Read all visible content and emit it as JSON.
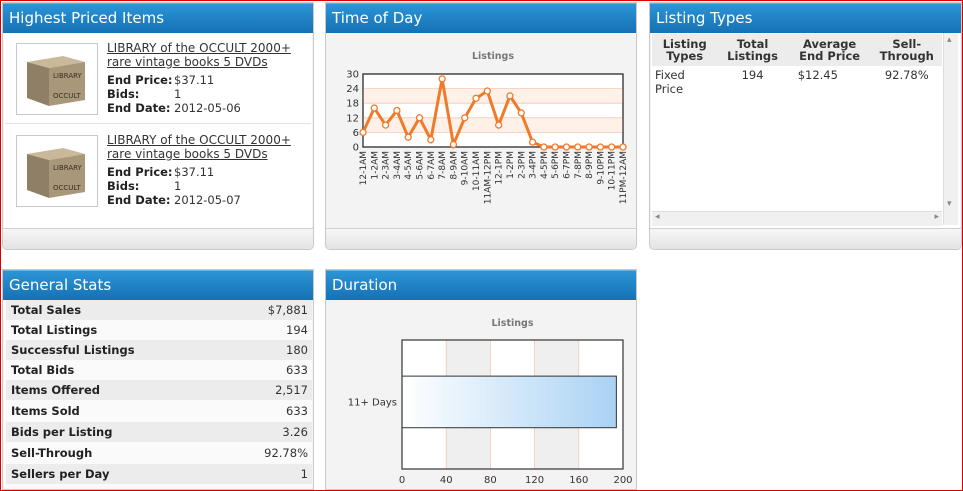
{
  "highest_priced": {
    "title": "Highest Priced Items",
    "items": [
      {
        "title": "LIBRARY of the OCCULT 2000+ rare vintage books 5 DVDs",
        "end_price_label": "End Price:",
        "end_price": "$37.11",
        "bids_label": "Bids:",
        "bids": "1",
        "end_date_label": "End Date:",
        "end_date": "2012-05-06",
        "thumb_text_top": "LIBRARY",
        "thumb_text_bottom": "OCCULT"
      },
      {
        "title": "LIBRARY of the OCCULT 2000+ rare vintage books 5 DVDs",
        "end_price_label": "End Price:",
        "end_price": "$37.11",
        "bids_label": "Bids:",
        "bids": "1",
        "end_date_label": "End Date:",
        "end_date": "2012-05-07",
        "thumb_text_top": "LIBRARY",
        "thumb_text_bottom": "OCCULT"
      }
    ]
  },
  "time_of_day": {
    "title": "Time of Day",
    "chart_data": {
      "type": "line",
      "title": "Listings",
      "categories": [
        "12-1AM",
        "1-2AM",
        "2-3AM",
        "3-4AM",
        "4-5AM",
        "5-6AM",
        "6-7AM",
        "7-8AM",
        "8-9AM",
        "9-10AM",
        "10-11AM",
        "11AM-12PM",
        "12-1PM",
        "1-2PM",
        "2-3PM",
        "3-4PM",
        "4-5PM",
        "5-6PM",
        "6-7PM",
        "7-8PM",
        "8-9PM",
        "9-10PM",
        "10-11PM",
        "11PM-12AM"
      ],
      "values": [
        6,
        16,
        9,
        15,
        4,
        12,
        3,
        28,
        1,
        12,
        20,
        23,
        9,
        21,
        14,
        2,
        0,
        0,
        0,
        0,
        0,
        0,
        0,
        0
      ],
      "yticks": [
        "0",
        "6",
        "12",
        "18",
        "24",
        "30"
      ],
      "ylim": [
        0,
        30
      ],
      "color": "#f07a2a"
    }
  },
  "listing_types": {
    "title": "Listing Types",
    "headers": [
      "Listing Types",
      "Total Listings",
      "Average End Price",
      "Sell-Through"
    ],
    "rows": [
      [
        "Fixed Price",
        "194",
        "$12.45",
        "92.78%"
      ]
    ]
  },
  "general_stats": {
    "title": "General Stats",
    "rows": [
      {
        "label": "Total Sales",
        "value": "$7,881"
      },
      {
        "label": "Total Listings",
        "value": "194"
      },
      {
        "label": "Successful Listings",
        "value": "180"
      },
      {
        "label": "Total Bids",
        "value": "633"
      },
      {
        "label": "Items Offered",
        "value": "2,517"
      },
      {
        "label": "Items Sold",
        "value": "633"
      },
      {
        "label": "Bids per Listing",
        "value": "3.26"
      },
      {
        "label": "Sell-Through",
        "value": "92.78%"
      },
      {
        "label": "Sellers per Day",
        "value": "1"
      }
    ]
  },
  "duration": {
    "title": "Duration",
    "chart_data": {
      "type": "bar",
      "orientation": "horizontal",
      "title": "Listings",
      "categories": [
        "11+ Days"
      ],
      "values": [
        194
      ],
      "xticks": [
        "0",
        "40",
        "80",
        "120",
        "160",
        "200"
      ],
      "xlim": [
        0,
        200
      ],
      "color": "#a9d2f4"
    }
  }
}
